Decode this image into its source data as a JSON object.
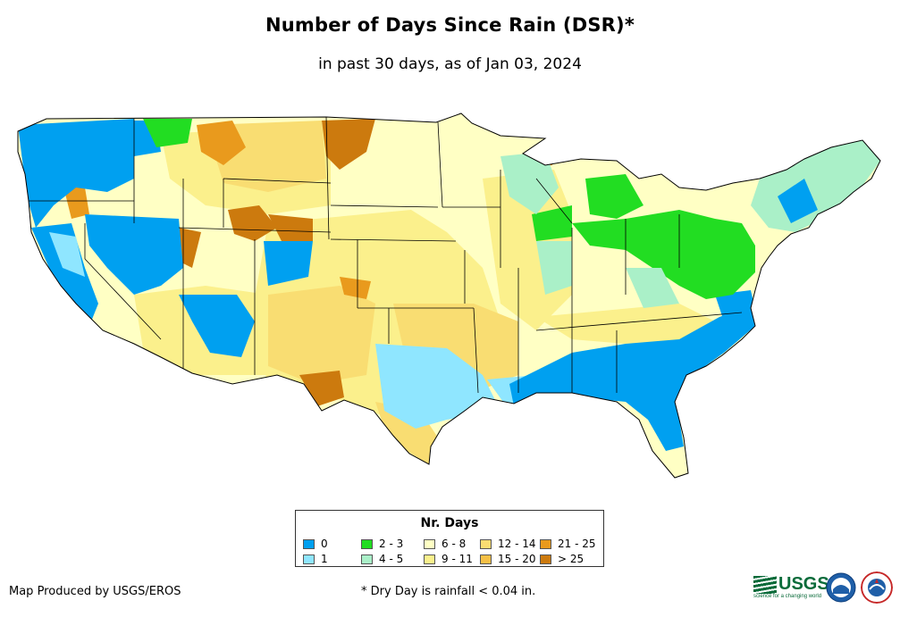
{
  "header": {
    "title": "Number of Days Since Rain (DSR)*",
    "subtitle": "in past 30 days, as of Jan 03, 2024"
  },
  "legend": {
    "title": "Nr. Days",
    "items": [
      {
        "label": "0",
        "color": "#00a0f0"
      },
      {
        "label": "1",
        "color": "#8fe6ff"
      },
      {
        "label": "2 - 3",
        "color": "#22dd22"
      },
      {
        "label": "4 - 5",
        "color": "#aaf0c8"
      },
      {
        "label": "6 - 8",
        "color": "#ffffc4"
      },
      {
        "label": "9 - 11",
        "color": "#fbf08c"
      },
      {
        "label": "12 - 14",
        "color": "#f9dd72"
      },
      {
        "label": "15 - 20",
        "color": "#f5c046"
      },
      {
        "label": "21 - 25",
        "color": "#e99a1d"
      },
      {
        "label": "> 25",
        "color": "#cc7a0e"
      }
    ]
  },
  "footer": {
    "credit": "Map Produced by USGS/EROS",
    "footnote": "* Dry Day is rainfall < 0.04 in."
  },
  "logos": {
    "usgs": "USGS",
    "usgs_tagline": "science for a changing world",
    "noaa": "NOAA",
    "nws": "NWS"
  }
}
